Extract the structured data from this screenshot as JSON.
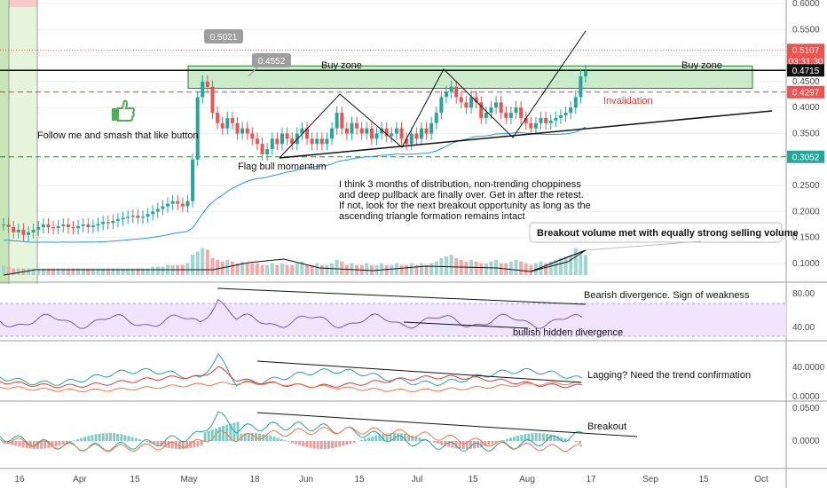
{
  "chart_data": {
    "type": "candlestick",
    "price_axis": {
      "range": [
        0.06,
        0.605
      ],
      "ticks": [
        "0.6000",
        "0.5500",
        "0.5000",
        "0.4500",
        "0.4000",
        "0.3500",
        "0.3000",
        "0.2500",
        "0.2000",
        "0.1500",
        "0.1000"
      ]
    },
    "time_axis": {
      "labels": [
        "16",
        "Apr",
        "15",
        "May",
        "18",
        "Jun",
        "15",
        "Jul",
        "15",
        "Aug",
        "17",
        "Sep",
        "15",
        "Oct"
      ]
    },
    "price_tags": [
      {
        "label": "0.5107",
        "color": "#ef5350",
        "price": 0.5107
      },
      {
        "label": "03:31:30",
        "color": "#ef5350",
        "price": 0.4895
      },
      {
        "label": "0.4715",
        "color": "#111111",
        "price": 0.4715
      },
      {
        "label": "0.4297",
        "color": "#ef5350",
        "price": 0.4297
      },
      {
        "label": "0.3052",
        "color": "#26a69a",
        "price": 0.3052
      }
    ],
    "callouts": [
      {
        "label": "0.5021",
        "price": 0.5021
      },
      {
        "label": "0.4552",
        "price": 0.4552
      }
    ],
    "levels": {
      "buy_zone_top": 0.48,
      "buy_zone_bottom": 0.437,
      "black_line": 0.4715,
      "invalidation": 0.4297,
      "support_green": 0.3052,
      "red_dotted": 0.5107
    },
    "closes": [
      0.175,
      0.17,
      0.16,
      0.165,
      0.155,
      0.16,
      0.165,
      0.17,
      0.175,
      0.17,
      0.168,
      0.172,
      0.175,
      0.17,
      0.168,
      0.172,
      0.175,
      0.17,
      0.173,
      0.176,
      0.18,
      0.178,
      0.182,
      0.185,
      0.188,
      0.19,
      0.192,
      0.188,
      0.19,
      0.195,
      0.2,
      0.205,
      0.21,
      0.215,
      0.22,
      0.215,
      0.21,
      0.22,
      0.3,
      0.42,
      0.45,
      0.44,
      0.39,
      0.37,
      0.36,
      0.38,
      0.37,
      0.35,
      0.36,
      0.35,
      0.34,
      0.33,
      0.31,
      0.32,
      0.34,
      0.33,
      0.35,
      0.34,
      0.33,
      0.35,
      0.36,
      0.34,
      0.33,
      0.34,
      0.33,
      0.34,
      0.36,
      0.39,
      0.36,
      0.35,
      0.37,
      0.36,
      0.35,
      0.36,
      0.34,
      0.35,
      0.36,
      0.345,
      0.35,
      0.36,
      0.34,
      0.33,
      0.35,
      0.34,
      0.36,
      0.35,
      0.37,
      0.39,
      0.42,
      0.43,
      0.44,
      0.42,
      0.41,
      0.4,
      0.42,
      0.41,
      0.38,
      0.39,
      0.4,
      0.41,
      0.39,
      0.38,
      0.39,
      0.4,
      0.38,
      0.37,
      0.36,
      0.37,
      0.38,
      0.37,
      0.375,
      0.38,
      0.385,
      0.39,
      0.4,
      0.42,
      0.46,
      0.47
    ],
    "volumes": [
      0.3,
      0.25,
      0.2,
      0.2,
      0.2,
      0.2,
      0.2,
      0.2,
      0.2,
      0.2,
      0.2,
      0.2,
      0.2,
      0.2,
      0.2,
      0.2,
      0.2,
      0.2,
      0.2,
      0.2,
      0.2,
      0.2,
      0.2,
      0.2,
      0.2,
      0.2,
      0.2,
      0.2,
      0.2,
      0.2,
      0.25,
      0.25,
      0.25,
      0.3,
      0.3,
      0.3,
      0.3,
      0.35,
      0.6,
      0.7,
      0.8,
      0.75,
      0.5,
      0.45,
      0.4,
      0.45,
      0.4,
      0.35,
      0.4,
      0.35,
      0.35,
      0.35,
      0.3,
      0.3,
      0.35,
      0.3,
      0.35,
      0.3,
      0.3,
      0.35,
      0.4,
      0.3,
      0.3,
      0.35,
      0.3,
      0.3,
      0.35,
      0.45,
      0.4,
      0.3,
      0.35,
      0.3,
      0.3,
      0.35,
      0.3,
      0.3,
      0.35,
      0.3,
      0.3,
      0.35,
      0.3,
      0.3,
      0.35,
      0.3,
      0.35,
      0.3,
      0.35,
      0.4,
      0.5,
      0.55,
      0.6,
      0.5,
      0.45,
      0.4,
      0.45,
      0.4,
      0.35,
      0.35,
      0.4,
      0.45,
      0.35,
      0.35,
      0.4,
      0.45,
      0.4,
      0.35,
      0.3,
      0.35,
      0.4,
      0.35,
      0.4,
      0.45,
      0.5,
      0.55,
      0.6,
      0.8,
      0.7,
      0.6
    ],
    "indicator_axes": {
      "rsi": [
        "80.00",
        "40.00"
      ],
      "panel3": [
        "40.0000",
        "0.0000"
      ],
      "macd": [
        "0.0500",
        "0.0000"
      ]
    }
  },
  "annotations": {
    "follow": "Follow me and smash that like button",
    "flag": "Flag bull momentum",
    "buy_zone": "Buy zone",
    "invalidation": "Invalidation",
    "thesis_lines": [
      "I think 3 months of distribution, non-trending choppiness",
      "and deep pullback are finally over.  Get in after the retest.",
      "If not, look for the next breakout opportunity as long as the",
      "ascending triangle formation remains intact"
    ],
    "volume_note": "Breakout volume met with equally strong selling volume",
    "bearish_div": "Bearish divergence.  Sign of weakness",
    "bullish_div": "bullish hidden divergence",
    "lagging": "Lagging?  Need the trend confirmation",
    "breakout": "Breakout"
  },
  "colors": {
    "up": "#26a69a",
    "down": "#ef5350",
    "buy_zone": "#b9e4b9",
    "rsi_band": "#efe4fb",
    "ema": "#2196f3",
    "grid": "#eeeeee"
  }
}
